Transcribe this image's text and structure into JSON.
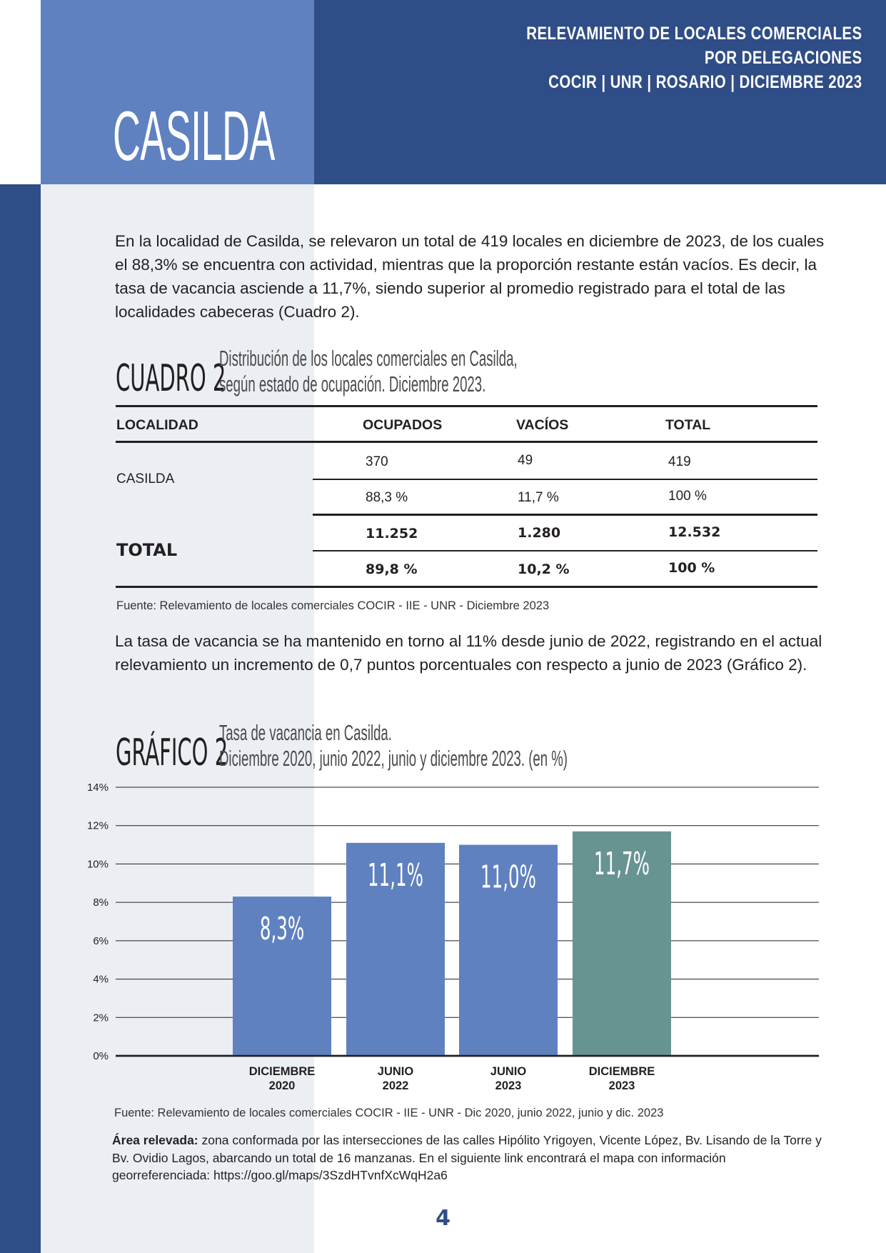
{
  "header": {
    "line1": "RELEVAMIENTO DE LOCALES COMERCIALES",
    "line2": "POR DELEGACIONES",
    "line3": "COCIR | UNR | ROSARIO | DICIEMBRE 2023"
  },
  "city_title": "CASILDA",
  "paragraph1": "En la localidad de Casilda, se relevaron un total de 419 locales en diciembre de 2023, de los cuales el 88,3% se encuentra con actividad, mientras que la proporción restante están vacíos. Es decir, la tasa de vacancia asciende a 11,7%, siendo superior al promedio registrado para el total de las localidades cabeceras (Cuadro 2).",
  "cuadro": {
    "label": "CUADRO 2",
    "desc1": "Distribución de los locales comerciales en Casilda,",
    "desc2": "según estado de ocupación. Diciembre 2023.",
    "headers": [
      "LOCALIDAD",
      "OCUPADOS",
      "VACÍOS",
      "TOTAL"
    ],
    "casilda": {
      "name": "CASILDA",
      "counts": [
        "370",
        "49",
        "419"
      ],
      "percents": [
        "88,3 %",
        "11,7 %",
        "100 %"
      ]
    },
    "total": {
      "name": "TOTAL",
      "counts": [
        "11.252",
        "1.280",
        "12.532"
      ],
      "percents": [
        "89,8 %",
        "10,2 %",
        "100 %"
      ]
    },
    "source": "Fuente: Relevamiento de locales comerciales COCIR - IIE - UNR - Diciembre 2023"
  },
  "paragraph2": "La tasa de vacancia se ha mantenido en torno al 11% desde junio de 2022, registrando en el actual relevamiento un incremento de 0,7 puntos porcentuales con respecto a junio de 2023 (Gráfico 2).",
  "grafico": {
    "label": "GRÁFICO 2",
    "desc1": "Tasa de vacancia en Casilda.",
    "desc2": "Diciembre 2020, junio 2022, junio y diciembre 2023. (en %)",
    "source": "Fuente: Relevamiento de locales comerciales COCIR - IIE - UNR - Dic 2020, junio 2022, junio y dic. 2023"
  },
  "chart_data": {
    "type": "bar",
    "categories": [
      [
        "DICIEMBRE",
        "2020"
      ],
      [
        "JUNIO",
        "2022"
      ],
      [
        "JUNIO",
        "2023"
      ],
      [
        "DICIEMBRE",
        "2023"
      ]
    ],
    "values": [
      8.3,
      11.1,
      11.0,
      11.7
    ],
    "data_labels": [
      "8,3%",
      "11,1%",
      "11,0%",
      "11,7%"
    ],
    "bar_colors": [
      "#5f81c0",
      "#5f81c0",
      "#5f81c0",
      "#679491"
    ],
    "yticks": [
      "0%",
      "2%",
      "4%",
      "6%",
      "8%",
      "10%",
      "12%",
      "14%"
    ],
    "ylim": [
      0,
      14
    ],
    "grid": true
  },
  "area": {
    "label": "Área relevada:",
    "text": " zona conformada por las intersecciones de las calles Hipólito Yrigoyen, Vicente López, Bv. Lisando de la Torre y Bv. Ovidio Lagos, abarcando un total de 16 manzanas. En el siguiente link encontrará el mapa con información georreferenciada: https://goo.gl/maps/3SzdHTvnfXcWqH2a6"
  },
  "page_number": "4"
}
